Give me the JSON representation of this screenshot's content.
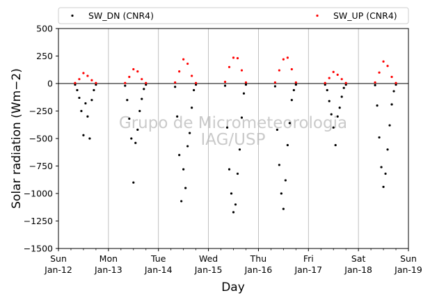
{
  "chart_data": {
    "type": "scatter",
    "xlabel": "Day",
    "ylabel": "Solar radiation (Wm−2)",
    "ylim": [
      -1500,
      500
    ],
    "xlim": [
      "2014-01-12",
      "2014-01-19"
    ],
    "yticks": [
      "500",
      "250",
      "0",
      "−250",
      "−500",
      "−750",
      "−1000",
      "−1250",
      "−1500"
    ],
    "xticks": [
      {
        "day": "Sun",
        "date": "Jan-12"
      },
      {
        "day": "Mon",
        "date": "Jan-13"
      },
      {
        "day": "Tue",
        "date": "Jan-14"
      },
      {
        "day": "Wed",
        "date": "Jan-15"
      },
      {
        "day": "Thu",
        "date": "Jan-16"
      },
      {
        "day": "Fri",
        "date": "Jan-17"
      },
      {
        "day": "Sat",
        "date": "Jan-18"
      },
      {
        "day": "Sun",
        "date": "Jan-19"
      }
    ],
    "grid": "vertical",
    "zero_line": true,
    "legend_position": "top",
    "watermark": [
      "Grupo de Micrometeorologia",
      "IAG/USP"
    ],
    "series": [
      {
        "name": "SW_DN (CNR4)",
        "color": "#000000",
        "x": [
          "2014-01-12 08:00",
          "2014-01-12 09:00",
          "2014-01-12 10:00",
          "2014-01-12 11:00",
          "2014-01-12 12:00",
          "2014-01-12 13:00",
          "2014-01-12 14:00",
          "2014-01-12 15:00",
          "2014-01-12 16:00",
          "2014-01-12 17:00",
          "2014-01-12 18:00",
          "2014-01-13 08:00",
          "2014-01-13 09:00",
          "2014-01-13 10:00",
          "2014-01-13 11:00",
          "2014-01-13 12:00",
          "2014-01-13 13:00",
          "2014-01-13 14:00",
          "2014-01-13 15:00",
          "2014-01-13 16:00",
          "2014-01-13 17:00",
          "2014-01-13 18:00",
          "2014-01-14 08:00",
          "2014-01-14 09:00",
          "2014-01-14 10:00",
          "2014-01-14 11:00",
          "2014-01-14 12:00",
          "2014-01-14 13:00",
          "2014-01-14 14:00",
          "2014-01-14 15:00",
          "2014-01-14 16:00",
          "2014-01-14 17:00",
          "2014-01-14 18:00",
          "2014-01-15 08:00",
          "2014-01-15 09:00",
          "2014-01-15 10:00",
          "2014-01-15 11:00",
          "2014-01-15 12:00",
          "2014-01-15 13:00",
          "2014-01-15 14:00",
          "2014-01-15 15:00",
          "2014-01-15 16:00",
          "2014-01-15 17:00",
          "2014-01-15 18:00",
          "2014-01-16 08:00",
          "2014-01-16 09:00",
          "2014-01-16 10:00",
          "2014-01-16 11:00",
          "2014-01-16 12:00",
          "2014-01-16 13:00",
          "2014-01-16 14:00",
          "2014-01-16 15:00",
          "2014-01-16 16:00",
          "2014-01-16 17:00",
          "2014-01-16 18:00",
          "2014-01-17 08:00",
          "2014-01-17 09:00",
          "2014-01-17 10:00",
          "2014-01-17 11:00",
          "2014-01-17 12:00",
          "2014-01-17 13:00",
          "2014-01-17 14:00",
          "2014-01-17 15:00",
          "2014-01-17 16:00",
          "2014-01-17 17:00",
          "2014-01-17 18:00",
          "2014-01-18 08:00",
          "2014-01-18 09:00",
          "2014-01-18 10:00",
          "2014-01-18 11:00",
          "2014-01-18 12:00",
          "2014-01-18 13:00",
          "2014-01-18 14:00",
          "2014-01-18 15:00",
          "2014-01-18 16:00",
          "2014-01-18 17:00",
          "2014-01-18 18:00"
        ],
        "y": [
          -10,
          -60,
          -130,
          -250,
          -470,
          -180,
          -300,
          -500,
          -150,
          -60,
          -10,
          -20,
          -150,
          -320,
          -500,
          -900,
          -540,
          -420,
          -250,
          -140,
          -50,
          -10,
          -30,
          -300,
          -650,
          -1070,
          -780,
          -950,
          -570,
          -450,
          -220,
          -60,
          -10,
          -20,
          -400,
          -780,
          -1000,
          -1170,
          -1100,
          -820,
          -600,
          -310,
          -90,
          -10,
          -25,
          -420,
          -740,
          -1000,
          -1140,
          -880,
          -560,
          -360,
          -150,
          -60,
          -10,
          -10,
          -60,
          -160,
          -280,
          -400,
          -560,
          -300,
          -220,
          -120,
          -40,
          -10,
          -15,
          -200,
          -490,
          -760,
          -940,
          -820,
          -600,
          -380,
          -190,
          -70,
          -10
        ]
      },
      {
        "name": "SW_UP (CNR4)",
        "color": "#ff0000",
        "x": [
          "2014-01-12 08:00",
          "2014-01-12 10:00",
          "2014-01-12 12:00",
          "2014-01-12 14:00",
          "2014-01-12 16:00",
          "2014-01-12 18:00",
          "2014-01-13 08:00",
          "2014-01-13 10:00",
          "2014-01-13 12:00",
          "2014-01-13 14:00",
          "2014-01-13 16:00",
          "2014-01-13 18:00",
          "2014-01-14 08:00",
          "2014-01-14 10:00",
          "2014-01-14 12:00",
          "2014-01-14 14:00",
          "2014-01-14 16:00",
          "2014-01-14 18:00",
          "2014-01-15 08:00",
          "2014-01-15 10:00",
          "2014-01-15 12:00",
          "2014-01-15 14:00",
          "2014-01-15 16:00",
          "2014-01-15 18:00",
          "2014-01-16 08:00",
          "2014-01-16 10:00",
          "2014-01-16 12:00",
          "2014-01-16 14:00",
          "2014-01-16 16:00",
          "2014-01-16 18:00",
          "2014-01-17 08:00",
          "2014-01-17 10:00",
          "2014-01-17 12:00",
          "2014-01-17 14:00",
          "2014-01-17 16:00",
          "2014-01-17 18:00",
          "2014-01-18 08:00",
          "2014-01-18 10:00",
          "2014-01-18 12:00",
          "2014-01-18 14:00",
          "2014-01-18 16:00",
          "2014-01-18 18:00"
        ],
        "y": [
          5,
          40,
          95,
          70,
          30,
          5,
          5,
          60,
          130,
          110,
          40,
          5,
          10,
          110,
          220,
          180,
          70,
          5,
          15,
          150,
          235,
          230,
          120,
          10,
          10,
          120,
          220,
          235,
          130,
          10,
          5,
          50,
          105,
          80,
          40,
          5,
          10,
          100,
          200,
          160,
          60,
          5
        ]
      }
    ]
  }
}
